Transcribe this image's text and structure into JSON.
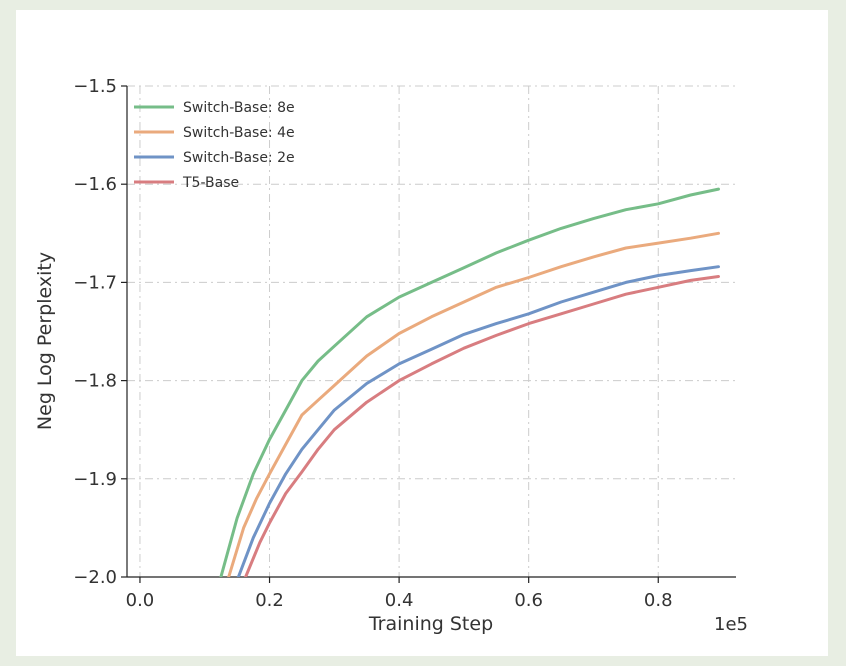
{
  "chart_data": {
    "type": "line",
    "title": "",
    "xlabel": "Training Step",
    "ylabel": "Neg Log Perplexity",
    "x_offset_label": "1e5",
    "xlim": [
      -0.02,
      0.92
    ],
    "ylim": [
      -2.0,
      -1.5
    ],
    "xticks": [
      0.0,
      0.2,
      0.4,
      0.6,
      0.8
    ],
    "xtick_labels": [
      "0.0",
      "0.2",
      "0.4",
      "0.6",
      "0.8"
    ],
    "yticks": [
      -2.0,
      -1.9,
      -1.8,
      -1.7,
      -1.6,
      -1.5
    ],
    "ytick_labels": [
      "−2.0",
      "−1.9",
      "−1.8",
      "−1.7",
      "−1.6",
      "−1.5"
    ],
    "grid": true,
    "legend_position": "top-left",
    "series": [
      {
        "name": "Switch-Base: 8e",
        "color": "#76bd88",
        "x": [
          0.125,
          0.15,
          0.175,
          0.2,
          0.225,
          0.25,
          0.275,
          0.3,
          0.35,
          0.4,
          0.45,
          0.5,
          0.55,
          0.6,
          0.65,
          0.7,
          0.75,
          0.8,
          0.85,
          0.893
        ],
        "y": [
          -2.0,
          -1.94,
          -1.895,
          -1.86,
          -1.83,
          -1.8,
          -1.78,
          -1.765,
          -1.735,
          -1.715,
          -1.7,
          -1.685,
          -1.67,
          -1.657,
          -1.645,
          -1.635,
          -1.626,
          -1.62,
          -1.611,
          -1.605
        ]
      },
      {
        "name": "Switch-Base: 4e",
        "color": "#eaaa7d",
        "x": [
          0.137,
          0.16,
          0.18,
          0.2,
          0.225,
          0.25,
          0.275,
          0.3,
          0.35,
          0.4,
          0.45,
          0.5,
          0.55,
          0.6,
          0.65,
          0.7,
          0.75,
          0.8,
          0.85,
          0.893
        ],
        "y": [
          -2.0,
          -1.95,
          -1.92,
          -1.895,
          -1.865,
          -1.835,
          -1.82,
          -1.805,
          -1.775,
          -1.752,
          -1.735,
          -1.72,
          -1.705,
          -1.695,
          -1.684,
          -1.674,
          -1.665,
          -1.66,
          -1.655,
          -1.65
        ]
      },
      {
        "name": "Switch-Base: 2e",
        "color": "#6f93c6",
        "x": [
          0.152,
          0.175,
          0.2,
          0.225,
          0.25,
          0.275,
          0.3,
          0.35,
          0.4,
          0.45,
          0.5,
          0.55,
          0.6,
          0.65,
          0.7,
          0.75,
          0.8,
          0.85,
          0.893
        ],
        "y": [
          -2.0,
          -1.96,
          -1.925,
          -1.895,
          -1.87,
          -1.85,
          -1.83,
          -1.803,
          -1.783,
          -1.768,
          -1.753,
          -1.742,
          -1.732,
          -1.72,
          -1.71,
          -1.7,
          -1.693,
          -1.688,
          -1.684
        ]
      },
      {
        "name": "T5-Base",
        "color": "#d87d80",
        "x": [
          0.163,
          0.185,
          0.2,
          0.225,
          0.25,
          0.275,
          0.3,
          0.35,
          0.4,
          0.45,
          0.5,
          0.55,
          0.6,
          0.65,
          0.7,
          0.75,
          0.8,
          0.85,
          0.893
        ],
        "y": [
          -2.0,
          -1.965,
          -1.945,
          -1.915,
          -1.893,
          -1.87,
          -1.85,
          -1.822,
          -1.8,
          -1.783,
          -1.767,
          -1.754,
          -1.742,
          -1.732,
          -1.722,
          -1.712,
          -1.705,
          -1.698,
          -1.694
        ]
      }
    ]
  }
}
